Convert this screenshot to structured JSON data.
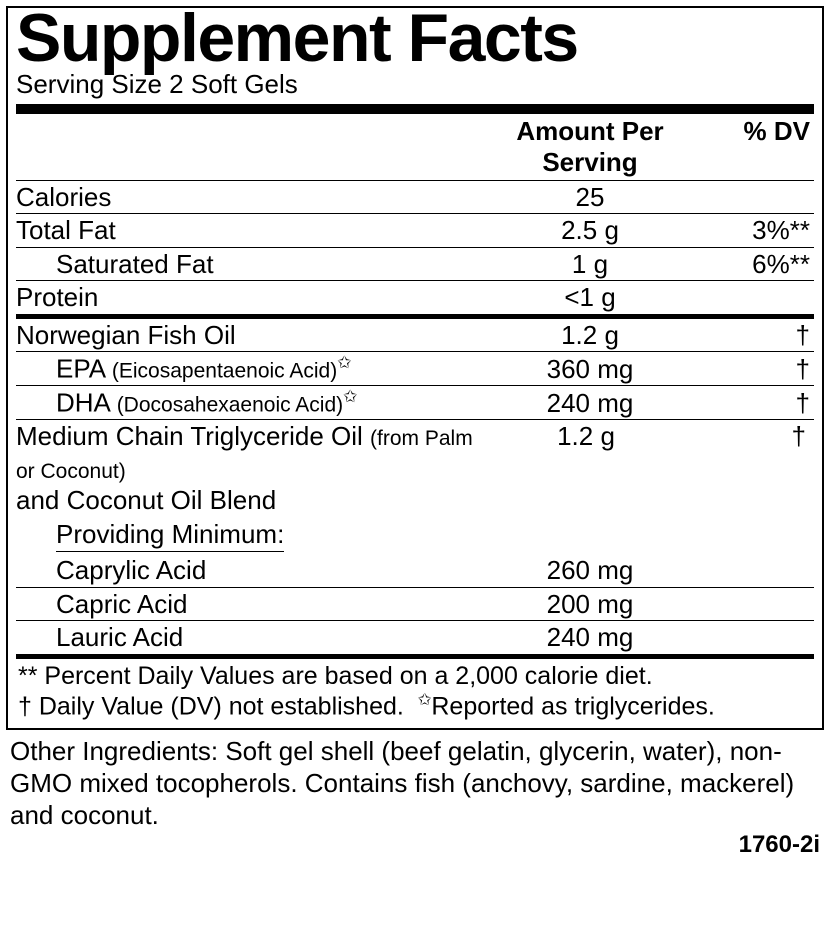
{
  "title": "Supplement Facts",
  "serving": "Serving Size 2 Soft Gels",
  "cols": {
    "amount": "Amount Per Serving",
    "dv": "% DV"
  },
  "sectionA": [
    {
      "name": "Calories",
      "amt": "25",
      "dv": "",
      "indent": 0
    },
    {
      "name": "Total Fat",
      "amt": "2.5 g",
      "dv": "3%**",
      "indent": 0
    },
    {
      "name": "Saturated Fat",
      "amt": "1 g",
      "dv": "6%**",
      "indent": 1
    },
    {
      "name": "Protein",
      "amt": "<1 g",
      "dv": "",
      "indent": 0
    }
  ],
  "sectionB": [
    {
      "name": "Norwegian Fish Oil",
      "amt": "1.2 g",
      "dv": "†",
      "indent": 0
    },
    {
      "name_html": "EPA <span class=\"sub\">(Eicosapentaenoic Acid)</span><span class=\"star\">✩</span>",
      "amt": "360 mg",
      "dv": "†",
      "indent": 1
    },
    {
      "name_html": "DHA <span class=\"sub\">(Docosahexaenoic Acid)</span><span class=\"star\">✩</span>",
      "amt": "240 mg",
      "dv": "†",
      "indent": 1
    }
  ],
  "mct": {
    "line1_html": "Medium Chain Triglyceride Oil <span class=\"sub\">(from Palm or Coconut)</span>",
    "line2": "and Coconut Oil Blend",
    "amt": "1.2 g",
    "dv": "†"
  },
  "providing": "Providing Minimum:",
  "acids": [
    {
      "name": "Caprylic Acid",
      "amt": "260 mg"
    },
    {
      "name": "Capric Acid",
      "amt": "200 mg"
    },
    {
      "name": "Lauric Acid",
      "amt": "240 mg"
    }
  ],
  "footnotes_html": "** Percent Daily Values are based on a 2,000 calorie diet.<br>† Daily Value (DV) not established.&nbsp;&nbsp;<span class=\"star\">✩</span>Reported as triglycerides.",
  "other": "Other Ingredients: Soft gel shell (beef gelatin, glycerin, water), non-GMO mixed tocopherols. Contains fish (anchovy, sardine, mackerel) and coconut.",
  "code": "1760-2i"
}
